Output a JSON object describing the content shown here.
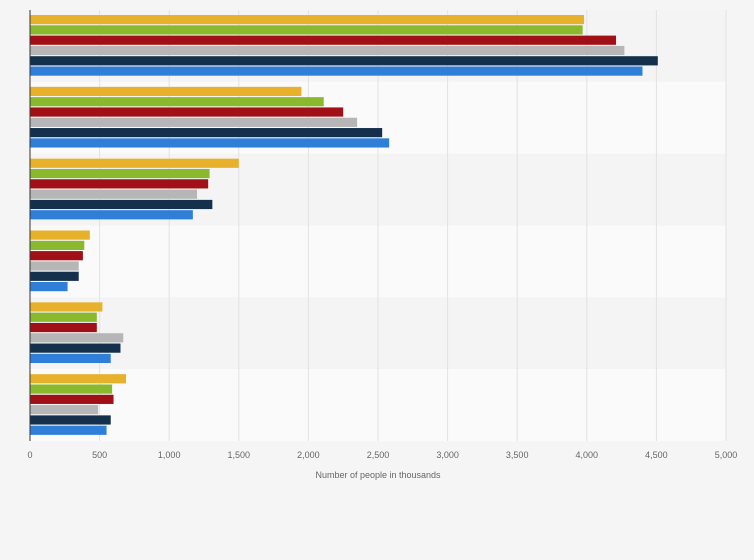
{
  "chart_data": {
    "type": "bar",
    "orientation": "horizontal",
    "title": "",
    "xlabel": "Number of people in thousands",
    "ylabel": "",
    "xlim": [
      0,
      5000
    ],
    "x_ticks": [
      0,
      500,
      1000,
      1500,
      2000,
      2500,
      3000,
      3500,
      4000,
      4500,
      5000
    ],
    "x_tick_labels": [
      "0",
      "500",
      "1,000",
      "1,500",
      "2,000",
      "2,500",
      "3,000",
      "3,500",
      "4,000",
      "4,500",
      "5,000"
    ],
    "grid": true,
    "legend": "none",
    "category_count": 6,
    "colors": [
      "#e8b12b",
      "#8ab92d",
      "#a11016",
      "#b6b6b6",
      "#14304d",
      "#2f7ed8"
    ],
    "series": [
      {
        "values": [
          3980,
          1950,
          1500,
          430,
          520,
          690
        ]
      },
      {
        "values": [
          3970,
          2110,
          1290,
          390,
          480,
          590
        ]
      },
      {
        "values": [
          4210,
          2250,
          1280,
          380,
          480,
          600
        ]
      },
      {
        "values": [
          4270,
          2350,
          1200,
          350,
          670,
          490
        ]
      },
      {
        "values": [
          4510,
          2530,
          1310,
          350,
          650,
          580
        ]
      },
      {
        "values": [
          4400,
          2580,
          1170,
          270,
          580,
          550
        ]
      }
    ]
  }
}
